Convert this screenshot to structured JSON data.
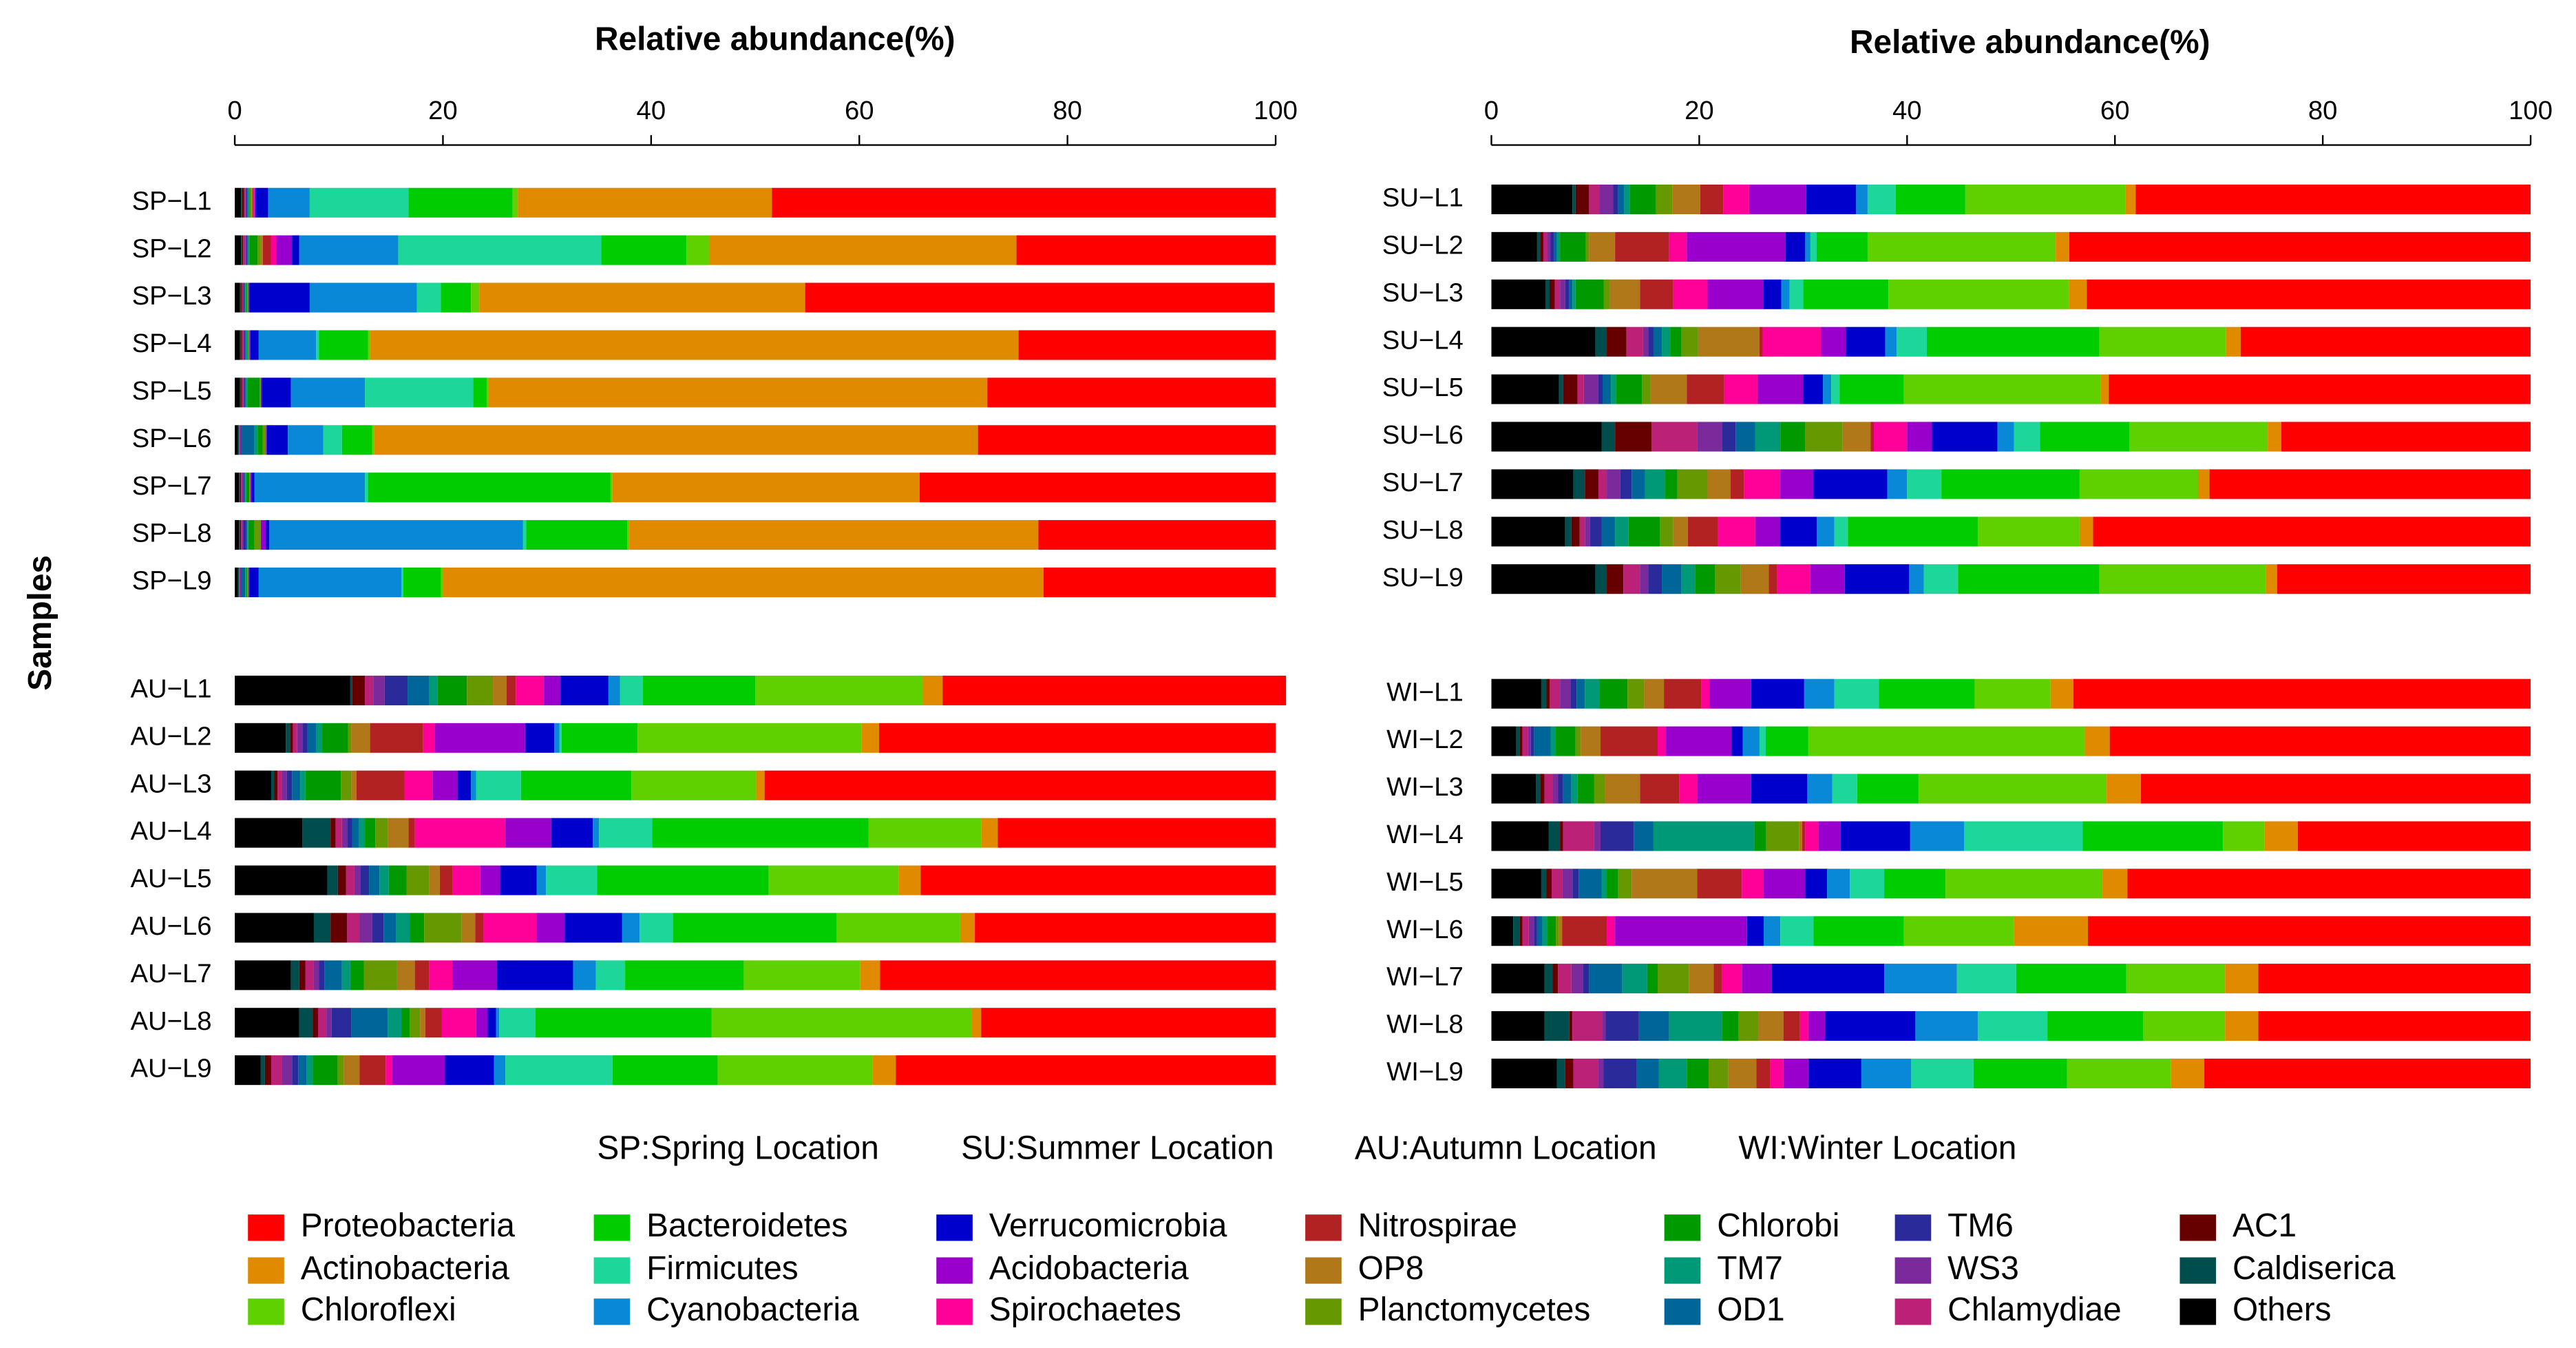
{
  "chart_data": {
    "type": "bar",
    "orientation": "horizontal",
    "stacked": true,
    "xlabel": "Relative abundance(%)",
    "ylabel": "Samples",
    "xlim": [
      0,
      100
    ],
    "xticks": [
      0,
      20,
      40,
      60,
      80,
      100
    ],
    "grid": false,
    "categories": [
      "SP−L1",
      "SP−L2",
      "SP−L3",
      "SP−L4",
      "SP−L5",
      "SP−L6",
      "SP−L7",
      "SP−L8",
      "SP−L9",
      "AU−L1",
      "AU−L2",
      "AU−L3",
      "AU−L4",
      "AU−L5",
      "AU−L6",
      "AU−L7",
      "AU−L8",
      "AU−L9",
      "SU−L1",
      "SU−L2",
      "SU−L3",
      "SU−L4",
      "SU−L5",
      "SU−L6",
      "SU−L7",
      "SU−L8",
      "SU−L9",
      "WI−L1",
      "WI−L2",
      "WI−L3",
      "WI−L4",
      "WI−L5",
      "WI−L6",
      "WI−L7",
      "WI−L8",
      "WI−L9"
    ],
    "annotations": [
      "SP:Spring Location",
      "SU:Summer Location",
      "AU:Autumn Location",
      "WI:Winter Location"
    ],
    "series": [
      {
        "name": "Proteobacteria",
        "color": "#ff0000",
        "values": [
          48.4,
          24.9,
          45.1,
          24.7,
          27.7,
          28.6,
          34.2,
          22.8,
          22.3,
          33.0,
          38.1,
          49.1,
          26.7,
          34.1,
          28.9,
          38.0,
          28.3,
          36.5,
          38.0,
          44.4,
          42.7,
          27.9,
          40.6,
          24.0,
          30.9,
          42.1,
          24.4,
          44.0,
          40.5,
          37.5,
          22.4,
          38.8,
          42.6,
          26.2,
          26.2,
          31.4
        ]
      },
      {
        "name": "Actinobacteria",
        "color": "#e08a00",
        "values": [
          24.4,
          29.5,
          31.3,
          62.3,
          47.9,
          58.0,
          29.5,
          39.3,
          57.7,
          1.9,
          1.7,
          0.8,
          1.6,
          2.1,
          1.4,
          1.9,
          0.9,
          2.2,
          1.0,
          1.3,
          1.7,
          1.4,
          0.8,
          1.3,
          1.1,
          1.3,
          1.1,
          2.2,
          2.4,
          3.3,
          3.2,
          2.4,
          7.1,
          3.2,
          3.2,
          3.2
        ]
      },
      {
        "name": "Chloroflexi",
        "color": "#5fd000",
        "values": [
          0.5,
          2.2,
          0.8,
          0.2,
          0.2,
          0.2,
          0.2,
          0.2,
          0.2,
          16.1,
          21.5,
          12.0,
          10.8,
          12.5,
          11.9,
          11.2,
          25.0,
          14.9,
          15.4,
          18.1,
          17.4,
          12.2,
          18.9,
          13.3,
          11.4,
          9.8,
          16.0,
          7.3,
          26.6,
          18.1,
          4.0,
          15.1,
          10.6,
          9.5,
          7.9,
          10.0
        ]
      },
      {
        "name": "Bacteroidetes",
        "color": "#00cc00",
        "values": [
          10.0,
          8.2,
          2.9,
          4.7,
          1.3,
          2.9,
          23.3,
          9.7,
          3.6,
          10.8,
          7.3,
          10.6,
          20.8,
          16.5,
          15.7,
          11.4,
          16.9,
          10.1,
          6.7,
          4.9,
          8.2,
          16.6,
          6.2,
          8.6,
          13.3,
          12.5,
          13.6,
          9.2,
          4.1,
          5.9,
          13.5,
          5.9,
          8.7,
          10.6,
          9.2,
          9.0
        ]
      },
      {
        "name": "Firmicutes",
        "color": "#1dd69a",
        "values": [
          9.5,
          19.5,
          2.3,
          0.3,
          10.4,
          1.8,
          0.3,
          0.3,
          0.2,
          2.2,
          0.2,
          4.3,
          5.1,
          4.9,
          3.2,
          2.8,
          3.5,
          10.3,
          2.7,
          0.6,
          1.3,
          2.9,
          0.8,
          2.5,
          3.3,
          1.3,
          3.3,
          4.3,
          0.6,
          2.4,
          11.4,
          3.3,
          3.2,
          5.7,
          6.7,
          6.0
        ]
      },
      {
        "name": "Cyanobacteria",
        "color": "#0a88d8",
        "values": [
          4.0,
          9.5,
          10.3,
          5.5,
          7.1,
          3.4,
          10.6,
          24.4,
          13.7,
          1.1,
          0.5,
          0.5,
          0.6,
          0.9,
          1.7,
          2.2,
          0.3,
          1.1,
          1.1,
          0.5,
          0.8,
          1.1,
          0.8,
          1.6,
          1.9,
          1.7,
          1.4,
          2.9,
          1.6,
          2.4,
          5.2,
          2.2,
          1.6,
          7.0,
          6.0,
          4.8
        ]
      },
      {
        "name": "Verrucomicrobia",
        "color": "#0000cc",
        "values": [
          1.2,
          0.7,
          5.8,
          0.8,
          2.8,
          2.0,
          0.3,
          0.3,
          0.9,
          4.6,
          2.8,
          1.3,
          4.0,
          3.5,
          5.5,
          7.3,
          0.8,
          4.7,
          4.8,
          1.9,
          1.7,
          3.8,
          1.9,
          6.3,
          7.1,
          3.5,
          6.2,
          5.1,
          1.1,
          5.4,
          6.7,
          2.1,
          1.6,
          10.8,
          8.7,
          5.1
        ]
      },
      {
        "name": "Acidobacteria",
        "color": "#9900cc",
        "values": [
          0.1,
          1.5,
          0.1,
          0.1,
          0.1,
          0.1,
          0.1,
          0.5,
          0.1,
          1.6,
          8.7,
          2.4,
          4.4,
          1.9,
          2.7,
          4.3,
          1.1,
          5.1,
          5.5,
          9.5,
          5.4,
          2.4,
          4.4,
          2.4,
          3.2,
          2.4,
          3.3,
          4.0,
          6.3,
          5.2,
          2.1,
          4.0,
          12.7,
          2.9,
          1.6,
          2.4
        ]
      },
      {
        "name": "Spirochaetes",
        "color": "#ff0099",
        "values": [
          0.1,
          0.5,
          0,
          0,
          0,
          0,
          0,
          0,
          0,
          2.7,
          1.1,
          2.7,
          8.7,
          2.7,
          5.1,
          2.2,
          3.3,
          0.6,
          2.5,
          1.7,
          3.3,
          5.6,
          3.2,
          3.2,
          3.5,
          3.6,
          3.2,
          0.8,
          0.8,
          1.7,
          1.3,
          2.1,
          0.8,
          1.9,
          0.8,
          1.3
        ]
      },
      {
        "name": "Nitrospirae",
        "color": "#b22222",
        "values": [
          0.1,
          0.8,
          0,
          0,
          0,
          0,
          0,
          0,
          0,
          0.9,
          5.1,
          4.6,
          0.6,
          1.2,
          0.8,
          1.4,
          1.6,
          2.5,
          2.2,
          5.2,
          3.2,
          0.3,
          3.6,
          0.3,
          1.3,
          2.9,
          0.8,
          3.6,
          5.5,
          3.8,
          0.3,
          4.3,
          4.3,
          0.8,
          1.6,
          1.3
        ]
      },
      {
        "name": "OP8",
        "color": "#b07818",
        "values": [
          0.1,
          0.2,
          0,
          0,
          0,
          0,
          0,
          0,
          0,
          1.3,
          1.8,
          0.5,
          2.0,
          1.0,
          1.3,
          1.7,
          0.5,
          1.5,
          2.7,
          2.5,
          2.9,
          5.9,
          3.5,
          2.7,
          2.2,
          1.4,
          2.7,
          1.9,
          1.9,
          3.4,
          0.3,
          6.3,
          0.3,
          2.4,
          2.4,
          2.7
        ]
      },
      {
        "name": "Planctomycetes",
        "color": "#669900",
        "values": [
          0.1,
          0.3,
          0.1,
          0.1,
          0.1,
          0.3,
          0.1,
          0.6,
          0.1,
          2.5,
          0.3,
          1.0,
          1.2,
          2.2,
          3.6,
          3.2,
          1.0,
          0.6,
          1.6,
          0.3,
          0.6,
          1.6,
          0.8,
          3.6,
          2.9,
          1.3,
          2.5,
          1.6,
          0.5,
          1.0,
          3.2,
          1.3,
          0.3,
          3.0,
          1.9,
          1.9
        ]
      },
      {
        "name": "Chlorobi",
        "color": "#009900",
        "values": [
          0.1,
          0.8,
          0.1,
          0.1,
          1.2,
          0.5,
          0.3,
          0.6,
          0.1,
          2.8,
          2.5,
          3.4,
          1.0,
          1.7,
          1.4,
          1.3,
          0.8,
          2.4,
          2.5,
          2.5,
          2.7,
          1.1,
          2.5,
          2.4,
          1.2,
          3.0,
          1.9,
          2.7,
          1.9,
          1.6,
          1.1,
          1.1,
          0.8,
          1.0,
          1.6,
          2.1
        ]
      },
      {
        "name": "TM7",
        "color": "#009977",
        "values": [
          0.1,
          0.1,
          0.1,
          0.1,
          0.1,
          0.3,
          0.1,
          0.1,
          0.1,
          0.8,
          0.6,
          0.5,
          0.6,
          0.9,
          1.3,
          0.8,
          1.3,
          0.6,
          0.5,
          0.3,
          0.3,
          0.8,
          0.5,
          2.4,
          1.9,
          1.3,
          1.3,
          1.4,
          0.5,
          0.6,
          9.7,
          0.5,
          0.5,
          2.4,
          5.1,
          2.7
        ]
      },
      {
        "name": "OD1",
        "color": "#006699",
        "values": [
          0.1,
          0.1,
          0.1,
          0.1,
          0.1,
          1.2,
          0.1,
          0.1,
          0.3,
          2.1,
          0.8,
          0.8,
          0.6,
          1.0,
          1.2,
          1.7,
          3.5,
          0.8,
          0.6,
          0.3,
          0.3,
          0.8,
          0.8,
          1.9,
          1.3,
          1.3,
          1.9,
          0.8,
          1.6,
          0.8,
          1.9,
          2.2,
          0.5,
          3.2,
          2.9,
          2.1
        ]
      },
      {
        "name": "TM6",
        "color": "#2a2a9a",
        "values": [
          0.1,
          0.1,
          0.1,
          0.1,
          0.1,
          0.1,
          0.1,
          0.3,
          0.1,
          2.2,
          0.5,
          0.5,
          0.5,
          0.8,
          1.1,
          0.5,
          1.9,
          0.6,
          0.5,
          0.3,
          0.4,
          0.5,
          0.4,
          1.3,
          1.1,
          1.1,
          1.3,
          0.6,
          0.3,
          0.5,
          3.2,
          0.6,
          0.3,
          0.6,
          3.2,
          3.2
        ]
      },
      {
        "name": "WS3",
        "color": "#7a2a9a",
        "values": [
          0.1,
          0.1,
          0,
          0.1,
          0.1,
          0.1,
          0.1,
          0.1,
          0.1,
          1.1,
          0.5,
          0.5,
          0.5,
          0.6,
          1.2,
          0.5,
          0.5,
          1.0,
          1.3,
          0.3,
          0.5,
          0.5,
          1.4,
          2.4,
          1.3,
          0.5,
          0.8,
          1.0,
          0.3,
          0.5,
          0.6,
          1.0,
          0.5,
          1.1,
          0.3,
          0.5
        ]
      },
      {
        "name": "Chlamydiae",
        "color": "#bb2277",
        "values": [
          0.1,
          0.2,
          0.1,
          0.1,
          0.1,
          0.1,
          0.1,
          0.1,
          0.1,
          0.8,
          0.4,
          0.4,
          0.6,
          0.8,
          1.2,
          0.8,
          0.8,
          1.0,
          1.0,
          0.4,
          0.5,
          1.6,
          0.6,
          4.4,
          0.8,
          0.5,
          1.6,
          1.0,
          0.5,
          0.8,
          3.0,
          1.0,
          0.6,
          1.3,
          2.9,
          2.4
        ]
      },
      {
        "name": "AC1",
        "color": "#660000",
        "values": [
          0.2,
          0.1,
          0.1,
          0.1,
          0.1,
          0,
          0.1,
          0.1,
          0,
          1.2,
          0.3,
          0.3,
          0.5,
          0.8,
          1.6,
          0.6,
          0.5,
          0.6,
          1.3,
          0.3,
          0.5,
          1.9,
          1.4,
          3.5,
          1.3,
          0.8,
          1.6,
          0.3,
          0.3,
          0.4,
          0.3,
          0.5,
          0.3,
          0.5,
          0.3,
          0.8
        ]
      },
      {
        "name": "Caldiserica",
        "color": "#004d4d",
        "values": [
          0.1,
          0.1,
          0.1,
          0.1,
          0.1,
          0.1,
          0.1,
          0.1,
          0.1,
          0.2,
          0.4,
          0.3,
          2.7,
          1.0,
          1.6,
          0.8,
          1.3,
          0.4,
          0.3,
          0.3,
          0.4,
          1.1,
          0.4,
          1.3,
          1.1,
          0.6,
          1.1,
          0.5,
          0.3,
          0.4,
          1.1,
          0.5,
          0.6,
          0.8,
          2.4,
          0.8
        ]
      },
      {
        "name": "Others",
        "color": "#000000",
        "values": [
          0.6,
          0.6,
          0.5,
          0.5,
          0.5,
          0.3,
          0.4,
          0.4,
          0.3,
          11.1,
          4.9,
          3.5,
          6.5,
          8.9,
          7.6,
          5.4,
          6.2,
          2.5,
          7.8,
          4.4,
          5.2,
          10.0,
          6.5,
          10.6,
          7.9,
          7.1,
          10.0,
          4.8,
          2.4,
          4.3,
          5.5,
          4.8,
          2.1,
          5.1,
          5.1,
          6.3
        ]
      }
    ]
  }
}
